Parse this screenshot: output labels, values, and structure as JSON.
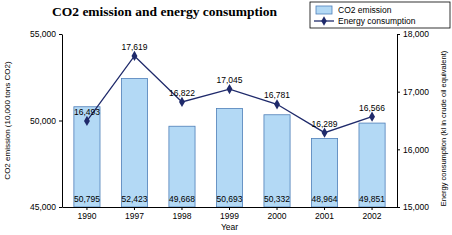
{
  "chart_data": {
    "type": "bar",
    "title": "CO2 emission and energy consumption",
    "xlabel": "Year",
    "ylabel": "CO2 emission (10,000 tons CO2)",
    "y2label": "Energy consumption (kl in crude oil equivalent)",
    "categories": [
      "1990",
      "1997",
      "1998",
      "1999",
      "2000",
      "2001",
      "2002"
    ],
    "series": [
      {
        "name": "CO2 emission",
        "type": "bar",
        "color": "#b3d9f5",
        "values": [
          50795,
          52423,
          49668,
          50693,
          50332,
          48964,
          49851
        ],
        "value_labels": [
          "50,795",
          "52,423",
          "49,668",
          "50,693",
          "50,332",
          "48,964",
          "49,851"
        ]
      },
      {
        "name": "Energy consumption",
        "type": "line",
        "axis": "y2",
        "color": "#1f2a6b",
        "marker": "diamond",
        "line_style": "solid",
        "values": [
          16493,
          17619,
          16822,
          17045,
          16781,
          16289,
          16566
        ],
        "value_labels": [
          "16,493",
          "17,619",
          "16,822",
          "17,045",
          "16,781",
          "16,289",
          "16,566"
        ]
      }
    ],
    "ylim": [
      45000,
      55000
    ],
    "yticks": [
      {
        "value": 45000,
        "label": "45,000"
      },
      {
        "value": 50000,
        "label": "50,000"
      },
      {
        "value": 55000,
        "label": "55,000"
      }
    ],
    "y2lim": [
      15000,
      18000
    ],
    "y2ticks": [
      {
        "value": 15000,
        "label": "15,000"
      },
      {
        "value": 16000,
        "label": "16,000"
      },
      {
        "value": 17000,
        "label": "17,000"
      },
      {
        "value": 18000,
        "label": "18,000"
      }
    ],
    "grid": false,
    "legend": "top-right",
    "data_labels": true
  }
}
